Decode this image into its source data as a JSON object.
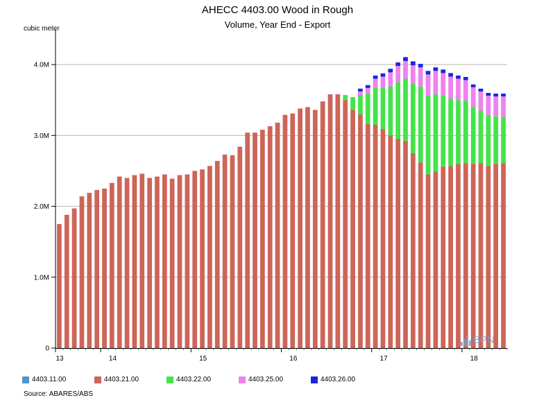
{
  "header": {
    "title": "AHECC 4403.00 Wood in Rough",
    "subtitle": "Volume, Year End - Export"
  },
  "footer": {
    "source": "Source: ABARES/ABS",
    "watermark": "BPN"
  },
  "colors": {
    "4403.11.00": "#4f95c9",
    "4403.21.00": "#cd6558",
    "4403.22.00": "#44e34a",
    "4403.25.00": "#ee82ee",
    "4403.26.00": "#1a25dd"
  },
  "chart_data": {
    "type": "bar",
    "stacked": true,
    "y_unit_label": "cubic meter",
    "ylim": [
      0,
      4500000
    ],
    "yticks": [
      {
        "value": 0,
        "label": "0"
      },
      {
        "value": 1000000,
        "label": "1.0M"
      },
      {
        "value": 2000000,
        "label": "2.0M"
      },
      {
        "value": 3000000,
        "label": "3.0M"
      },
      {
        "value": 4000000,
        "label": "4.0M"
      }
    ],
    "grid": true,
    "legend_position": "bottom",
    "x_period_labels": [
      {
        "label": "13",
        "index": 0
      },
      {
        "label": "14",
        "index": 6
      },
      {
        "label": "15",
        "index": 18
      },
      {
        "label": "16",
        "index": 30
      },
      {
        "label": "17",
        "index": 42
      },
      {
        "label": "18",
        "index": 54
      }
    ],
    "categories_count": 60,
    "series": [
      {
        "name": "4403.11.00",
        "values": [
          0,
          0,
          0,
          0,
          0,
          0,
          0,
          0,
          0,
          0,
          0,
          0,
          0,
          0,
          0,
          0,
          0,
          0,
          0,
          0,
          0,
          0,
          0,
          0,
          0,
          0,
          0,
          0,
          0,
          0,
          0,
          0,
          0,
          0,
          0,
          0,
          0,
          0,
          0,
          0,
          0,
          0,
          0,
          0,
          0,
          0,
          0,
          0,
          0,
          0,
          0,
          0,
          0,
          0,
          0,
          0,
          0,
          0,
          0,
          0
        ]
      },
      {
        "name": "4403.21.00",
        "values": [
          1750000,
          1880000,
          1970000,
          2140000,
          2190000,
          2230000,
          2250000,
          2330000,
          2420000,
          2400000,
          2440000,
          2460000,
          2400000,
          2420000,
          2450000,
          2390000,
          2440000,
          2450000,
          2500000,
          2520000,
          2570000,
          2640000,
          2730000,
          2720000,
          2840000,
          3040000,
          3040000,
          3080000,
          3130000,
          3180000,
          3290000,
          3310000,
          3380000,
          3400000,
          3360000,
          3480000,
          3580000,
          3580000,
          3500000,
          3360000,
          3300000,
          3160000,
          3150000,
          3090000,
          3000000,
          2950000,
          2920000,
          2750000,
          2620000,
          2450000,
          2490000,
          2560000,
          2570000,
          2600000,
          2610000,
          2600000,
          2610000,
          2570000,
          2600000,
          2610000
        ]
      },
      {
        "name": "4403.22.00",
        "values": [
          0,
          0,
          0,
          0,
          0,
          0,
          0,
          0,
          0,
          0,
          0,
          0,
          0,
          0,
          0,
          0,
          0,
          0,
          0,
          0,
          0,
          0,
          0,
          0,
          0,
          0,
          0,
          0,
          0,
          0,
          0,
          0,
          0,
          0,
          0,
          0,
          0,
          0,
          70000,
          180000,
          270000,
          430000,
          520000,
          580000,
          690000,
          800000,
          880000,
          980000,
          1070000,
          1110000,
          1090000,
          1000000,
          950000,
          900000,
          880000,
          800000,
          740000,
          720000,
          670000,
          650000
        ]
      },
      {
        "name": "4403.25.00",
        "values": [
          0,
          0,
          0,
          0,
          0,
          0,
          0,
          0,
          0,
          0,
          0,
          0,
          0,
          0,
          0,
          0,
          0,
          0,
          0,
          0,
          0,
          0,
          0,
          0,
          0,
          0,
          0,
          0,
          0,
          0,
          0,
          0,
          0,
          0,
          0,
          0,
          0,
          0,
          0,
          0,
          50000,
          80000,
          130000,
          160000,
          200000,
          230000,
          250000,
          260000,
          270000,
          300000,
          330000,
          320000,
          310000,
          300000,
          290000,
          280000,
          270000,
          270000,
          280000,
          290000
        ]
      },
      {
        "name": "4403.26.00",
        "values": [
          0,
          0,
          0,
          0,
          0,
          0,
          0,
          0,
          0,
          0,
          0,
          0,
          0,
          0,
          0,
          0,
          0,
          0,
          0,
          0,
          0,
          0,
          0,
          0,
          0,
          0,
          0,
          0,
          0,
          0,
          0,
          0,
          0,
          0,
          0,
          0,
          0,
          0,
          0,
          0,
          40000,
          40000,
          45000,
          45000,
          50000,
          50000,
          55000,
          55000,
          50000,
          50000,
          50000,
          50000,
          50000,
          45000,
          45000,
          40000,
          40000,
          40000,
          40000,
          40000
        ]
      }
    ]
  }
}
